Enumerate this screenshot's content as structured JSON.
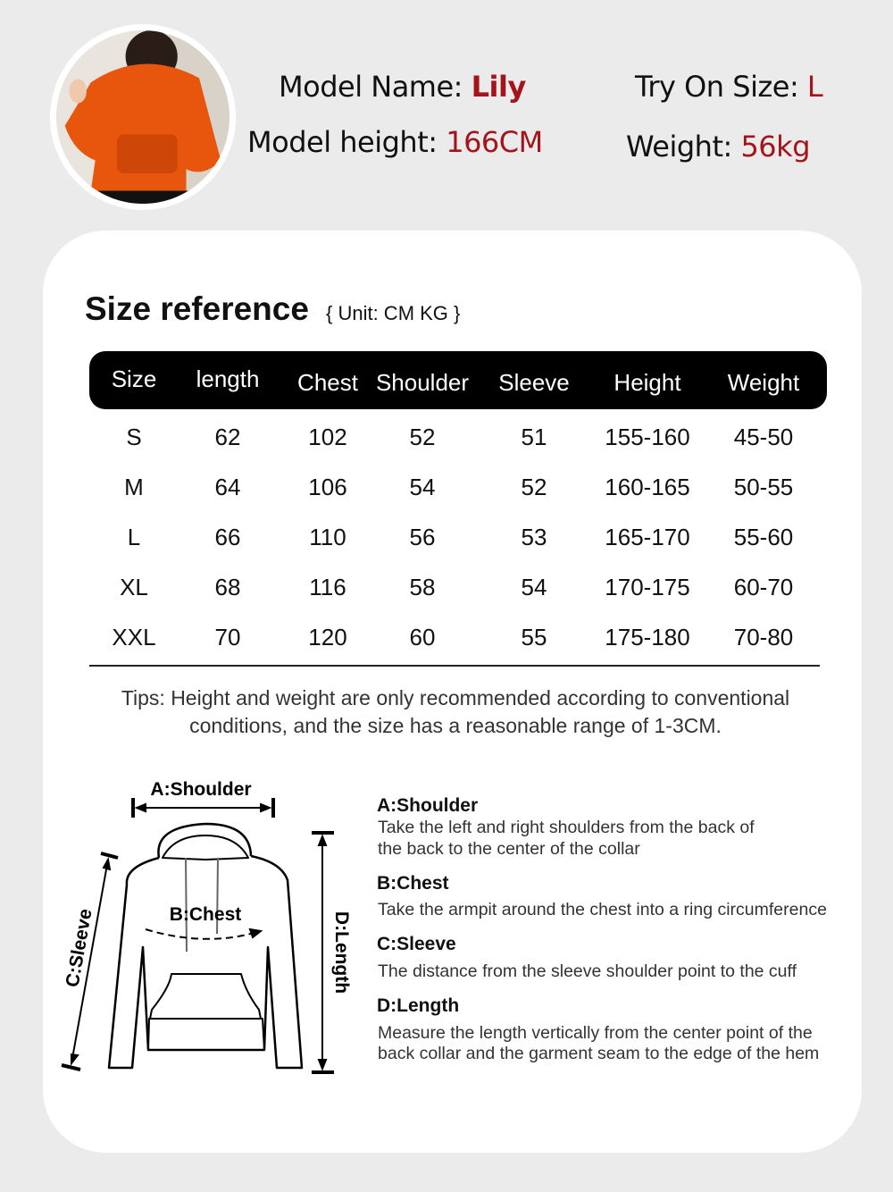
{
  "model": {
    "name_label": "Model Name:",
    "name": "Lily",
    "height_label": "Model height:",
    "height": "166CM",
    "size_label": "Try On Size:",
    "size": "L",
    "weight_label": "Weight:",
    "weight": "56kg"
  },
  "colors": {
    "accent": "#a3141b",
    "hoodie": "#e8560e",
    "background": "#ebebeb"
  },
  "chart": {
    "title": "Size reference",
    "unit": "{ Unit: CM KG }",
    "headers": [
      "Size",
      "length",
      "Chest",
      "Shoulder",
      "Sleeve",
      "Height",
      "Weight"
    ],
    "rows": [
      [
        "S",
        "62",
        "102",
        "52",
        "51",
        "155-160",
        "45-50"
      ],
      [
        "M",
        "64",
        "106",
        "54",
        "52",
        "160-165",
        "50-55"
      ],
      [
        "L",
        "66",
        "110",
        "56",
        "53",
        "165-170",
        "55-60"
      ],
      [
        "XL",
        "68",
        "116",
        "58",
        "54",
        "170-175",
        "60-70"
      ],
      [
        "XXL",
        "70",
        "120",
        "60",
        "55",
        "175-180",
        "70-80"
      ]
    ],
    "tips_line1": "Tips: Height and weight are only recommended according to conventional",
    "tips_line2": "conditions, and the size has a reasonable range of 1-3CM."
  },
  "diagram": {
    "a": "A:Shoulder",
    "b": "B:Chest",
    "c": "C:Sleeve",
    "d": "D:Length"
  },
  "descriptions": [
    {
      "title": "A:Shoulder",
      "text1": "Take the left and right shoulders from the back of",
      "text2": "the back to the center of the collar"
    },
    {
      "title": "B:Chest",
      "text1": "Take the armpit around the chest into a ring circumference",
      "text2": ""
    },
    {
      "title": "C:Sleeve",
      "text1": "The distance from the sleeve shoulder point to the cuff",
      "text2": ""
    },
    {
      "title": "D:Length",
      "text1": "Measure the length vertically from the center point of the",
      "text2": "back collar and the garment seam to the edge of the hem"
    }
  ]
}
